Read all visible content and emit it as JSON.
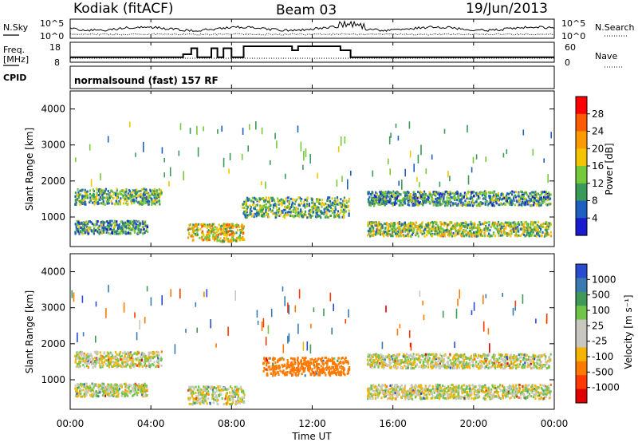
{
  "header": {
    "station": "Kodiak (fitACF)",
    "beam": "Beam 03",
    "date": "19/Jun/2013"
  },
  "param_panel": {
    "nsky_label": "N.Sky",
    "nsearch_label": "N.Search",
    "freq_label_1": "Freq.",
    "freq_label_2": "[MHz]",
    "nave_label": "Nave",
    "cpid_label": "CPID",
    "noise_left_ticks": [
      "10^5",
      "10^0"
    ],
    "noise_right_ticks": [
      "10^5",
      "10^0"
    ],
    "freq_ticks": [
      "18",
      "8"
    ],
    "nave_ticks": [
      "60",
      "0"
    ],
    "cpid_text": "normalsound (fast) 157 RF"
  },
  "axes": {
    "xlabel": "Time UT",
    "ylabel": "Slant Range [km]",
    "x_ticks": [
      "00:00",
      "04:00",
      "08:00",
      "12:00",
      "16:00",
      "20:00",
      "00:00"
    ],
    "y_ticks": [
      "4000",
      "3000",
      "2000",
      "1000"
    ]
  },
  "colorbars": {
    "power": {
      "label": "Power [dB]",
      "ticks": [
        "28",
        "24",
        "20",
        "16",
        "12",
        "8",
        "4"
      ],
      "colors": [
        "#ff0000",
        "#ff5a00",
        "#ff9a00",
        "#f5c400",
        "#76c93a",
        "#3a9a5a",
        "#1f5fbf",
        "#1a1acf"
      ]
    },
    "velocity": {
      "label": "Velocity [m s⁻¹]",
      "ticks": [
        "1000",
        "500",
        "100",
        "25",
        "-25",
        "-100",
        "-500",
        "-1000"
      ],
      "colors": [
        "#2a4bd0",
        "#3a7ab0",
        "#3f9a5a",
        "#70c44a",
        "#c8c8c0",
        "#c8c8c0",
        "#f4b400",
        "#ff7a00",
        "#ff3a00",
        "#e00000"
      ]
    }
  },
  "chart_data": {
    "type": "heatmap",
    "title": "Kodiak (fitACF) Beam 03 19/Jun/2013",
    "xlabel": "Time UT",
    "ylabel": "Slant Range [km]",
    "x_range_hours": [
      0,
      24
    ],
    "y_range_km": [
      180,
      4500
    ],
    "panels": [
      {
        "name": "Power [dB]",
        "color_range": [
          0,
          30
        ],
        "scatter_bands": [
          {
            "t_start": 0.2,
            "t_end": 4.5,
            "range_center_km": 1550,
            "range_halfwidth_km": 220,
            "dominant_value": 12
          },
          {
            "t_start": 0.2,
            "t_end": 3.8,
            "range_center_km": 700,
            "range_halfwidth_km": 180,
            "dominant_value": 10
          },
          {
            "t_start": 5.8,
            "t_end": 8.6,
            "range_center_km": 550,
            "range_halfwidth_km": 250,
            "dominant_value": 18
          },
          {
            "t_start": 8.5,
            "t_end": 13.8,
            "range_center_km": 1250,
            "range_halfwidth_km": 280,
            "dominant_value": 12
          },
          {
            "t_start": 14.7,
            "t_end": 23.8,
            "range_center_km": 1500,
            "range_halfwidth_km": 200,
            "dominant_value": 10
          },
          {
            "t_start": 14.7,
            "t_end": 23.8,
            "range_center_km": 650,
            "range_halfwidth_km": 200,
            "dominant_value": 14
          }
        ]
      },
      {
        "name": "Velocity [m s-1]",
        "color_range": [
          -1000,
          1000
        ],
        "scatter_bands": [
          {
            "t_start": 0.2,
            "t_end": 4.5,
            "range_center_km": 1550,
            "range_halfwidth_km": 220,
            "dominant_value": 0
          },
          {
            "t_start": 0.2,
            "t_end": 3.8,
            "range_center_km": 700,
            "range_halfwidth_km": 180,
            "dominant_value": 0
          },
          {
            "t_start": 5.8,
            "t_end": 8.6,
            "range_center_km": 550,
            "range_halfwidth_km": 250,
            "dominant_value": 0
          },
          {
            "t_start": 9.5,
            "t_end": 13.8,
            "range_center_km": 1350,
            "range_halfwidth_km": 250,
            "dominant_value": -300
          },
          {
            "t_start": 14.7,
            "t_end": 23.8,
            "range_center_km": 1500,
            "range_halfwidth_km": 200,
            "dominant_value": 0
          },
          {
            "t_start": 14.7,
            "t_end": 23.8,
            "range_center_km": 650,
            "range_halfwidth_km": 200,
            "dominant_value": 0
          }
        ]
      }
    ],
    "frequency_MHz": {
      "t": [
        0,
        5.6,
        5.6,
        6.0,
        6.0,
        6.3,
        6.3,
        7.0,
        7.0,
        7.3,
        7.3,
        7.6,
        7.6,
        8.0,
        8.0,
        8.6,
        8.6,
        11.0,
        11.0,
        11.3,
        11.3,
        13.4,
        13.4,
        13.9,
        13.9,
        24
      ],
      "v": [
        10.5,
        10.5,
        12,
        12,
        15,
        15,
        10.5,
        10.5,
        15,
        15,
        10.5,
        10.5,
        15,
        15,
        10.5,
        10.5,
        16,
        16,
        14,
        14,
        16,
        16,
        14,
        14,
        10.5,
        10.5
      ]
    }
  }
}
